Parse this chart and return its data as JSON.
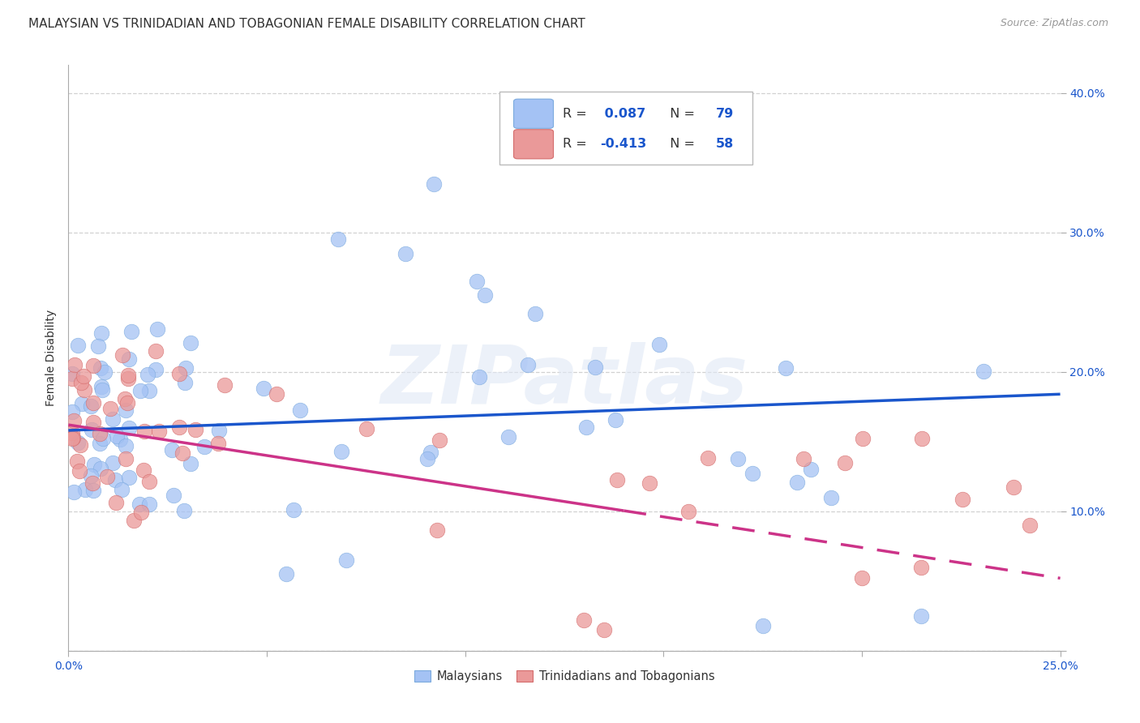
{
  "title": "MALAYSIAN VS TRINIDADIAN AND TOBAGONIAN FEMALE DISABILITY CORRELATION CHART",
  "source": "Source: ZipAtlas.com",
  "ylabel": "Female Disability",
  "xlim": [
    0.0,
    0.25
  ],
  "ylim": [
    0.0,
    0.42
  ],
  "x_ticks": [
    0.0,
    0.05,
    0.1,
    0.15,
    0.2,
    0.25
  ],
  "y_ticks": [
    0.0,
    0.1,
    0.2,
    0.3,
    0.4
  ],
  "legend_labels": [
    "Malaysians",
    "Trinidadians and Tobagonians"
  ],
  "r_malaysian": 0.087,
  "n_malaysian": 79,
  "r_trinidadian": -0.413,
  "n_trinidadian": 58,
  "blue_scatter_color": "#a4c2f4",
  "pink_scatter_color": "#ea9999",
  "blue_line_color": "#1a56cc",
  "pink_line_color": "#cc3388",
  "blue_text_color": "#1a56cc",
  "dark_text_color": "#333333",
  "watermark_text": "ZIPatlas",
  "background_color": "#ffffff",
  "grid_color": "#cccccc",
  "title_fontsize": 11,
  "tick_fontsize": 10,
  "source_fontsize": 9,
  "blue_trend_start_y": 0.158,
  "blue_trend_end_y": 0.184,
  "pink_trend_start_y": 0.162,
  "pink_trend_end_y": 0.052
}
